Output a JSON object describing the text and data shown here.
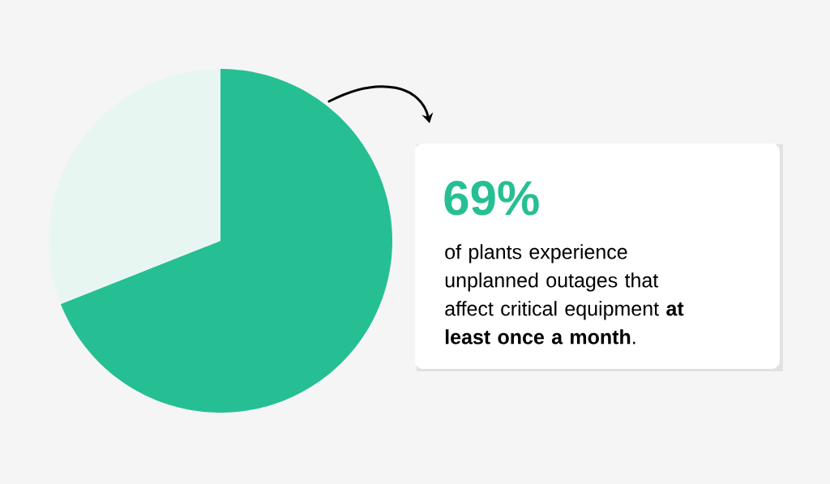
{
  "chart_data": {
    "type": "pie",
    "categories": [
      null,
      null
    ],
    "values": [
      69,
      31
    ],
    "colors": [
      "#26bf94",
      "#e8f6f2"
    ],
    "annotations": [
      "69%",
      "of plants experience unplanned outages that affect critical equipment **at least once a month**."
    ]
  }
}
